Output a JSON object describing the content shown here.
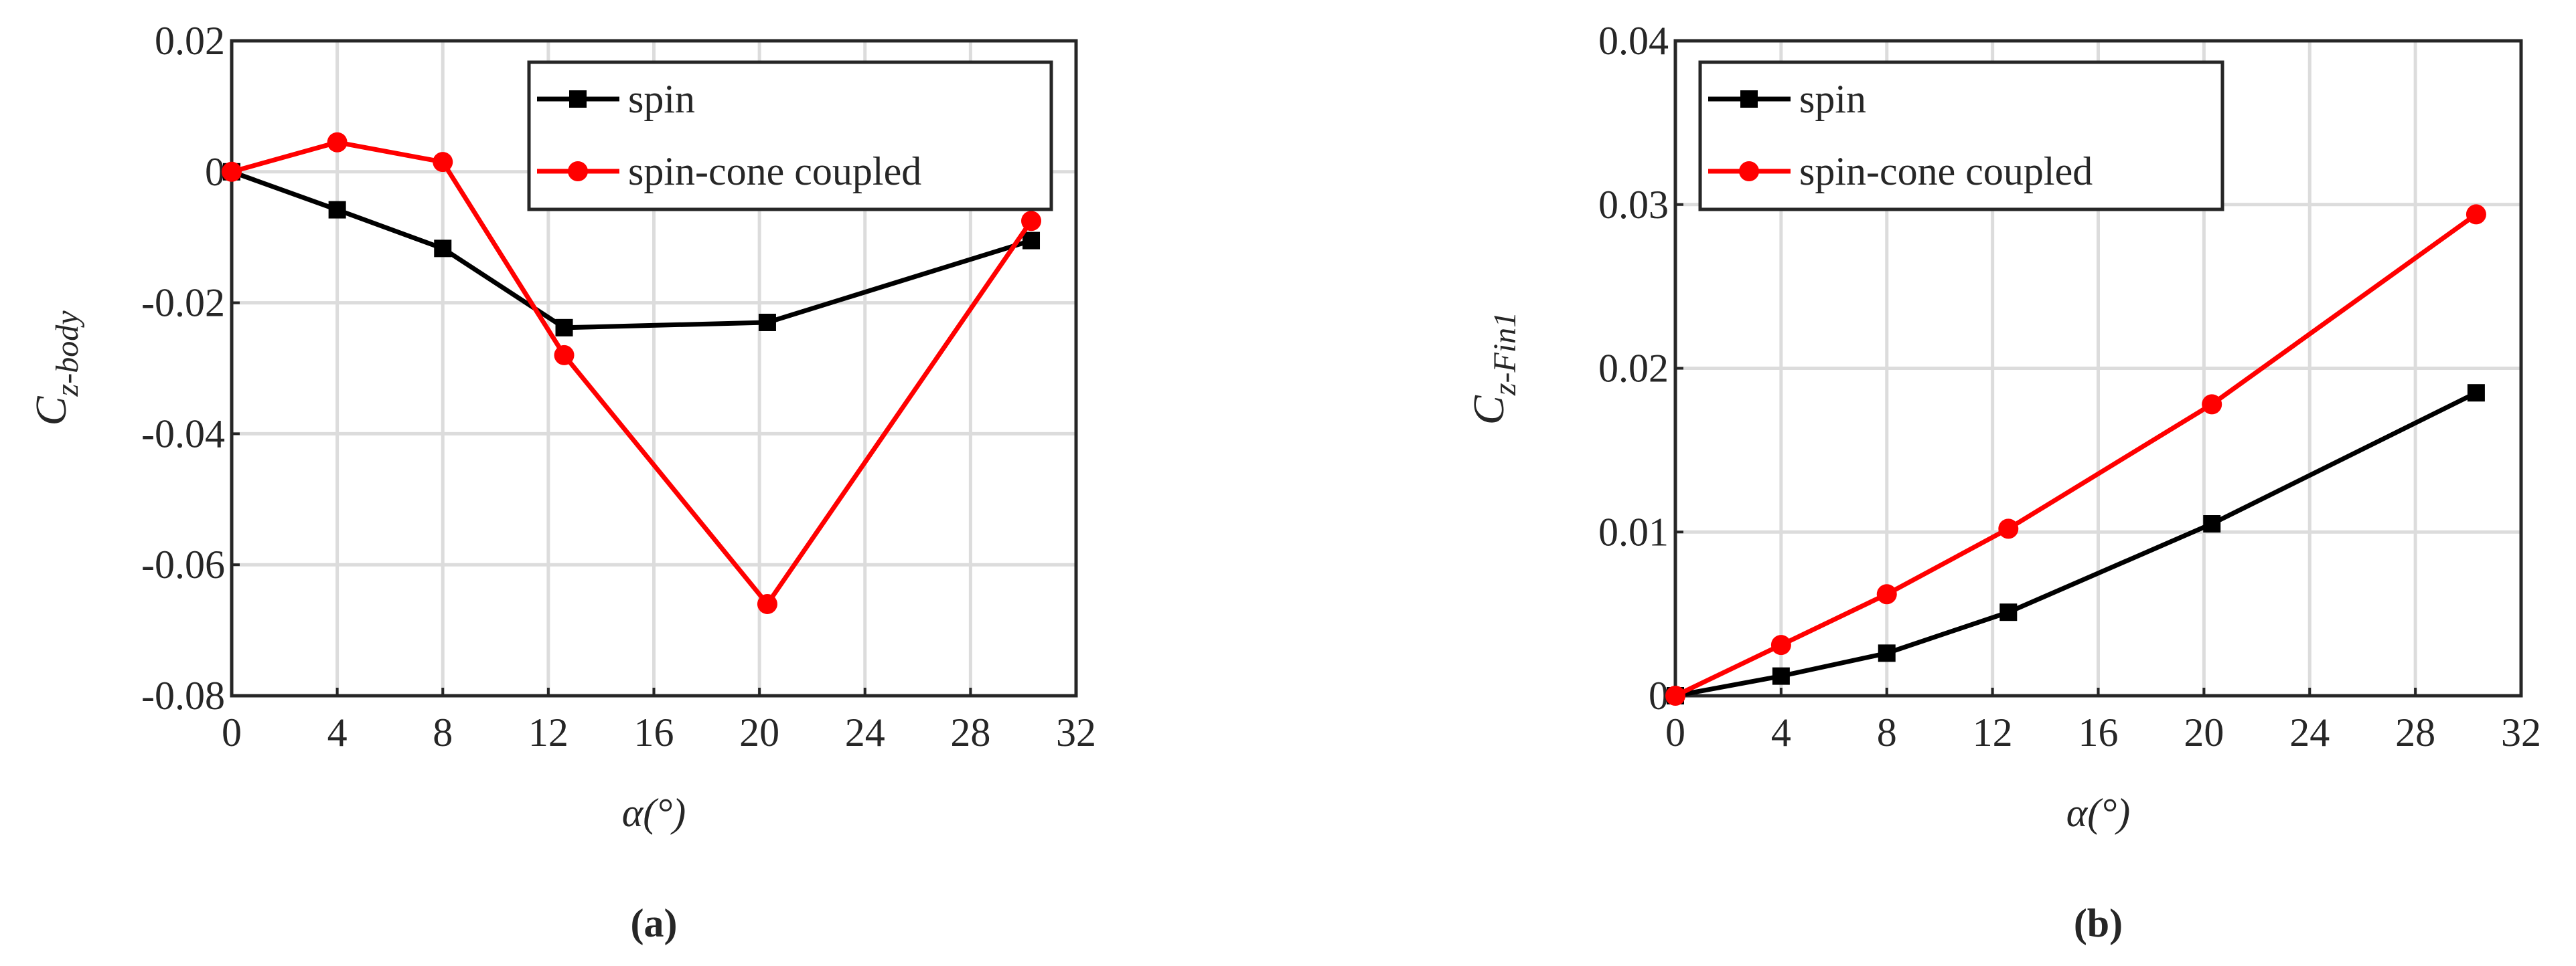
{
  "chart_data": [
    {
      "type": "line",
      "xlabel": "α(°)",
      "ylabel": "C",
      "ylabel_sub": "z-body",
      "caption": "(a)",
      "x": [
        0,
        4,
        8,
        12.6,
        20.3,
        30.3
      ],
      "series": [
        {
          "name": "spin",
          "color": "#000000",
          "marker": "square",
          "values": [
            0,
            -0.0058,
            -0.0117,
            -0.0238,
            -0.023,
            -0.0105
          ]
        },
        {
          "name": "spin-cone coupled",
          "color": "#ff0000",
          "marker": "circle",
          "values": [
            0,
            0.0045,
            0.0015,
            -0.028,
            -0.066,
            -0.0075
          ]
        }
      ],
      "xlim": [
        0,
        32
      ],
      "xticks": [
        0,
        4,
        8,
        12,
        16,
        20,
        24,
        28,
        32
      ],
      "ylim": [
        -0.08,
        0.02
      ],
      "yticks": [
        -0.08,
        -0.06,
        -0.04,
        -0.02,
        0,
        0.02
      ],
      "grid": true,
      "legend": "upper right"
    },
    {
      "type": "line",
      "xlabel": "α(°)",
      "ylabel": "C",
      "ylabel_sub": "z-Fin1",
      "caption": "(b)",
      "x": [
        0,
        4,
        8,
        12.6,
        20.3,
        30.3
      ],
      "series": [
        {
          "name": "spin",
          "color": "#000000",
          "marker": "square",
          "values": [
            0,
            0.0012,
            0.0026,
            0.0051,
            0.0105,
            0.0185
          ]
        },
        {
          "name": "spin-cone coupled",
          "color": "#ff0000",
          "marker": "circle",
          "values": [
            0,
            0.0031,
            0.0062,
            0.0102,
            0.0178,
            0.0294
          ]
        }
      ],
      "xlim": [
        0,
        32
      ],
      "xticks": [
        0,
        4,
        8,
        12,
        16,
        20,
        24,
        28,
        32
      ],
      "ylim": [
        0,
        0.04
      ],
      "yticks": [
        0,
        0.01,
        0.02,
        0.03,
        0.04
      ],
      "grid": true,
      "legend": "upper left"
    }
  ]
}
